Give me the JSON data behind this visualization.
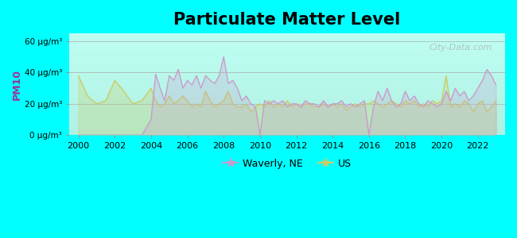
{
  "title": "Particulate Matter Level",
  "ylabel": "PM10",
  "background_color": "#00ffff",
  "plot_bg_top": "#ffffff",
  "plot_bg_bottom": "#cceecc",
  "title_fontsize": 15,
  "ylim": [
    0,
    65
  ],
  "yticks": [
    0,
    20,
    40,
    60
  ],
  "ytick_labels": [
    "0 μg/m³",
    "20 μg/m³",
    "40 μg/m³",
    "60 μg/m³"
  ],
  "xticks": [
    2000,
    2002,
    2004,
    2006,
    2008,
    2010,
    2012,
    2014,
    2016,
    2018,
    2020,
    2022
  ],
  "xlim": [
    1999.5,
    2023.5
  ],
  "waverly_color": "#cc99cc",
  "us_color": "#cccc66",
  "legend_marker": "*",
  "waverly_data": {
    "years": [
      2000,
      2000.5,
      2001,
      2001.5,
      2002,
      2002.5,
      2003,
      2003.5,
      2004,
      2004.25,
      2004.5,
      2004.75,
      2005,
      2005.25,
      2005.5,
      2005.75,
      2006,
      2006.25,
      2006.5,
      2006.75,
      2007,
      2007.25,
      2007.5,
      2007.75,
      2008,
      2008.25,
      2008.5,
      2008.75,
      2009,
      2009.25,
      2009.5,
      2009.75,
      2010,
      2010.25,
      2010.5,
      2010.75,
      2011,
      2011.25,
      2011.5,
      2011.75,
      2012,
      2012.25,
      2012.5,
      2012.75,
      2013,
      2013.25,
      2013.5,
      2013.75,
      2014,
      2014.25,
      2014.5,
      2014.75,
      2015,
      2015.25,
      2015.5,
      2015.75,
      2016,
      2016.25,
      2016.5,
      2016.75,
      2017,
      2017.25,
      2017.5,
      2017.75,
      2018,
      2018.25,
      2018.5,
      2018.75,
      2019,
      2019.25,
      2019.5,
      2019.75,
      2020,
      2020.25,
      2020.5,
      2020.75,
      2021,
      2021.25,
      2021.5,
      2021.75,
      2022,
      2022.25,
      2022.5,
      2022.75,
      2023
    ],
    "values": [
      0,
      0,
      0,
      0,
      0,
      0,
      0,
      0,
      10,
      39,
      30,
      22,
      38,
      35,
      42,
      30,
      35,
      32,
      38,
      30,
      38,
      35,
      33,
      38,
      50,
      33,
      35,
      30,
      22,
      25,
      20,
      18,
      0,
      22,
      20,
      22,
      20,
      22,
      18,
      20,
      20,
      18,
      22,
      20,
      20,
      18,
      22,
      18,
      20,
      20,
      22,
      18,
      20,
      18,
      20,
      22,
      0,
      18,
      28,
      22,
      30,
      22,
      18,
      20,
      28,
      22,
      25,
      20,
      18,
      22,
      20,
      18,
      20,
      28,
      22,
      30,
      25,
      28,
      22,
      25,
      30,
      35,
      42,
      38,
      32
    ]
  },
  "us_data": {
    "years": [
      2000,
      2000.5,
      2001,
      2001.5,
      2002,
      2002.5,
      2003,
      2003.5,
      2004,
      2004.25,
      2004.5,
      2004.75,
      2005,
      2005.25,
      2005.5,
      2005.75,
      2006,
      2006.25,
      2006.5,
      2006.75,
      2007,
      2007.25,
      2007.5,
      2007.75,
      2008,
      2008.25,
      2008.5,
      2008.75,
      2009,
      2009.25,
      2009.5,
      2009.75,
      2010,
      2010.25,
      2010.5,
      2010.75,
      2011,
      2011.25,
      2011.5,
      2011.75,
      2012,
      2012.25,
      2012.5,
      2012.75,
      2013,
      2013.25,
      2013.5,
      2013.75,
      2014,
      2014.25,
      2014.5,
      2014.75,
      2015,
      2015.25,
      2015.5,
      2015.75,
      2016,
      2016.25,
      2016.5,
      2016.75,
      2017,
      2017.25,
      2017.5,
      2017.75,
      2018,
      2018.25,
      2018.5,
      2018.75,
      2019,
      2019.25,
      2019.5,
      2019.75,
      2020,
      2020.25,
      2020.5,
      2020.75,
      2021,
      2021.25,
      2021.5,
      2021.75,
      2022,
      2022.25,
      2022.5,
      2022.75,
      2023
    ],
    "values": [
      38,
      25,
      20,
      22,
      35,
      28,
      20,
      22,
      30,
      22,
      18,
      20,
      25,
      20,
      22,
      25,
      22,
      18,
      20,
      18,
      28,
      22,
      18,
      20,
      22,
      28,
      20,
      18,
      18,
      20,
      15,
      18,
      20,
      18,
      22,
      18,
      20,
      18,
      22,
      18,
      20,
      18,
      20,
      20,
      18,
      18,
      20,
      18,
      20,
      18,
      20,
      16,
      18,
      20,
      18,
      20,
      20,
      22,
      20,
      18,
      20,
      22,
      20,
      18,
      22,
      20,
      22,
      18,
      20,
      18,
      22,
      20,
      22,
      38,
      18,
      20,
      18,
      22,
      20,
      15,
      20,
      22,
      15,
      18,
      22
    ]
  }
}
